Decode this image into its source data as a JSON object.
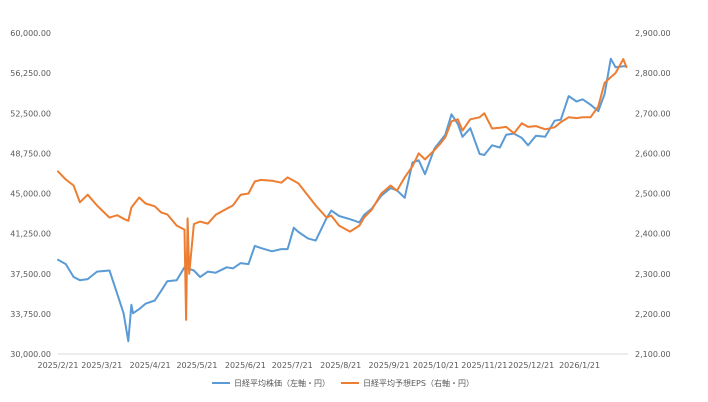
{
  "chart_data": {
    "type": "line",
    "title": "",
    "x_ticks": [
      "2025/2/21",
      "2025/3/21",
      "2025/4/21",
      "2025/5/21",
      "2025/6/21",
      "2025/7/21",
      "2025/8/21",
      "2025/9/21",
      "2025/10/21",
      "2025/11/21",
      "2025/12/21",
      "2026/1/21"
    ],
    "y_left": {
      "min": 30000,
      "max": 60000,
      "ticks": [
        "30,000.00",
        "33,750.00",
        "37,500.00",
        "41,250.00",
        "45,000.00",
        "48,750.00",
        "52,500.00",
        "56,250.00",
        "60,000.00"
      ]
    },
    "y_right": {
      "min": 2100,
      "max": 2900,
      "ticks": [
        "2,100.00",
        "2,200.00",
        "2,300.00",
        "2,400.00",
        "2,500.00",
        "2,600.00",
        "2,700.00",
        "2,800.00",
        "2,900.00"
      ]
    },
    "grid": false,
    "legend_position": "bottom",
    "series": [
      {
        "name": "日経平均株価（左軸・円）",
        "axis": "left",
        "color": "#5b9bd5",
        "points": [
          [
            "2025-02-21",
            38800
          ],
          [
            "2025-02-26",
            38400
          ],
          [
            "2025-03-03",
            37200
          ],
          [
            "2025-03-07",
            36900
          ],
          [
            "2025-03-12",
            37000
          ],
          [
            "2025-03-18",
            37700
          ],
          [
            "2025-03-26",
            37800
          ],
          [
            "2025-03-31",
            35600
          ],
          [
            "2025-04-04",
            33800
          ],
          [
            "2025-04-07",
            31200
          ],
          [
            "2025-04-09",
            34600
          ],
          [
            "2025-04-10",
            33800
          ],
          [
            "2025-04-14",
            34200
          ],
          [
            "2025-04-18",
            34700
          ],
          [
            "2025-04-24",
            35000
          ],
          [
            "2025-04-28",
            35900
          ],
          [
            "2025-05-02",
            36800
          ],
          [
            "2025-05-08",
            36900
          ],
          [
            "2025-05-13",
            38100
          ],
          [
            "2025-05-19",
            37800
          ],
          [
            "2025-05-23",
            37200
          ],
          [
            "2025-05-28",
            37700
          ],
          [
            "2025-06-02",
            37600
          ],
          [
            "2025-06-09",
            38100
          ],
          [
            "2025-06-13",
            38000
          ],
          [
            "2025-06-18",
            38500
          ],
          [
            "2025-06-23",
            38400
          ],
          [
            "2025-06-27",
            40100
          ],
          [
            "2025-07-01",
            39900
          ],
          [
            "2025-07-08",
            39600
          ],
          [
            "2025-07-14",
            39800
          ],
          [
            "2025-07-18",
            39800
          ],
          [
            "2025-07-22",
            41800
          ],
          [
            "2025-07-25",
            41400
          ],
          [
            "2025-07-31",
            40800
          ],
          [
            "2025-08-05",
            40600
          ],
          [
            "2025-08-12",
            42700
          ],
          [
            "2025-08-15",
            43400
          ],
          [
            "2025-08-20",
            42900
          ],
          [
            "2025-08-27",
            42600
          ],
          [
            "2025-09-02",
            42300
          ],
          [
            "2025-09-05",
            43000
          ],
          [
            "2025-09-10",
            43600
          ],
          [
            "2025-09-16",
            44800
          ],
          [
            "2025-09-22",
            45500
          ],
          [
            "2025-09-26",
            45300
          ],
          [
            "2025-10-01",
            44600
          ],
          [
            "2025-10-06",
            47900
          ],
          [
            "2025-10-10",
            48100
          ],
          [
            "2025-10-14",
            46800
          ],
          [
            "2025-10-20",
            49200
          ],
          [
            "2025-10-27",
            50500
          ],
          [
            "2025-10-31",
            52400
          ],
          [
            "2025-11-04",
            51500
          ],
          [
            "2025-11-07",
            50300
          ],
          [
            "2025-11-12",
            51100
          ],
          [
            "2025-11-18",
            48700
          ],
          [
            "2025-11-21",
            48600
          ],
          [
            "2025-11-26",
            49500
          ],
          [
            "2025-12-01",
            49300
          ],
          [
            "2025-12-05",
            50500
          ],
          [
            "2025-12-10",
            50600
          ],
          [
            "2025-12-15",
            50200
          ],
          [
            "2025-12-19",
            49500
          ],
          [
            "2025-12-24",
            50400
          ],
          [
            "2025-12-30",
            50300
          ],
          [
            "2026-01-05",
            51800
          ],
          [
            "2026-01-09",
            51900
          ],
          [
            "2026-01-14",
            54100
          ],
          [
            "2026-01-19",
            53600
          ],
          [
            "2026-01-23",
            53800
          ],
          [
            "2026-01-28",
            53300
          ],
          [
            "2026-02-02",
            52700
          ],
          [
            "2026-02-06",
            54300
          ],
          [
            "2026-02-10",
            57600
          ],
          [
            "2026-02-13",
            56800
          ],
          [
            "2026-02-18",
            56900
          ],
          [
            "2026-02-20",
            56900
          ]
        ]
      },
      {
        "name": "日経平均予想EPS（右軸・円）",
        "axis": "right",
        "color": "#ed7d31",
        "points": [
          [
            "2025-02-21",
            2555
          ],
          [
            "2025-02-26",
            2535
          ],
          [
            "2025-03-03",
            2520
          ],
          [
            "2025-03-07",
            2478
          ],
          [
            "2025-03-12",
            2497
          ],
          [
            "2025-03-18",
            2470
          ],
          [
            "2025-03-26",
            2440
          ],
          [
            "2025-03-31",
            2446
          ],
          [
            "2025-04-04",
            2437
          ],
          [
            "2025-04-07",
            2432
          ],
          [
            "2025-04-09",
            2465
          ],
          [
            "2025-04-14",
            2490
          ],
          [
            "2025-04-18",
            2475
          ],
          [
            "2025-04-24",
            2468
          ],
          [
            "2025-04-28",
            2453
          ],
          [
            "2025-05-02",
            2448
          ],
          [
            "2025-05-08",
            2420
          ],
          [
            "2025-05-13",
            2410
          ],
          [
            "2025-05-14",
            2185
          ],
          [
            "2025-05-15",
            2438
          ],
          [
            "2025-05-16",
            2300
          ],
          [
            "2025-05-19",
            2424
          ],
          [
            "2025-05-23",
            2430
          ],
          [
            "2025-05-28",
            2425
          ],
          [
            "2025-06-02",
            2447
          ],
          [
            "2025-06-09",
            2462
          ],
          [
            "2025-06-13",
            2470
          ],
          [
            "2025-06-18",
            2497
          ],
          [
            "2025-06-23",
            2500
          ],
          [
            "2025-06-27",
            2530
          ],
          [
            "2025-07-01",
            2534
          ],
          [
            "2025-07-08",
            2532
          ],
          [
            "2025-07-14",
            2527
          ],
          [
            "2025-07-18",
            2540
          ],
          [
            "2025-07-22",
            2532
          ],
          [
            "2025-07-25",
            2525
          ],
          [
            "2025-07-31",
            2495
          ],
          [
            "2025-08-05",
            2470
          ],
          [
            "2025-08-12",
            2440
          ],
          [
            "2025-08-15",
            2445
          ],
          [
            "2025-08-20",
            2420
          ],
          [
            "2025-08-27",
            2405
          ],
          [
            "2025-09-02",
            2420
          ],
          [
            "2025-09-05",
            2440
          ],
          [
            "2025-09-10",
            2460
          ],
          [
            "2025-09-16",
            2500
          ],
          [
            "2025-09-22",
            2520
          ],
          [
            "2025-09-26",
            2507
          ],
          [
            "2025-10-01",
            2540
          ],
          [
            "2025-10-06",
            2568
          ],
          [
            "2025-10-10",
            2600
          ],
          [
            "2025-10-14",
            2585
          ],
          [
            "2025-10-20",
            2608
          ],
          [
            "2025-10-24",
            2625
          ],
          [
            "2025-10-27",
            2640
          ],
          [
            "2025-10-31",
            2680
          ],
          [
            "2025-11-04",
            2685
          ],
          [
            "2025-11-07",
            2657
          ],
          [
            "2025-11-12",
            2685
          ],
          [
            "2025-11-18",
            2690
          ],
          [
            "2025-11-21",
            2700
          ],
          [
            "2025-11-26",
            2662
          ],
          [
            "2025-12-01",
            2664
          ],
          [
            "2025-12-05",
            2666
          ],
          [
            "2025-12-10",
            2650
          ],
          [
            "2025-12-15",
            2675
          ],
          [
            "2025-12-19",
            2666
          ],
          [
            "2025-12-24",
            2668
          ],
          [
            "2025-12-30",
            2660
          ],
          [
            "2026-01-05",
            2665
          ],
          [
            "2026-01-09",
            2678
          ],
          [
            "2026-01-14",
            2690
          ],
          [
            "2026-01-19",
            2688
          ],
          [
            "2026-01-23",
            2690
          ],
          [
            "2026-01-28",
            2690
          ],
          [
            "2026-02-02",
            2717
          ],
          [
            "2026-02-06",
            2776
          ],
          [
            "2026-02-10",
            2790
          ],
          [
            "2026-02-13",
            2800
          ],
          [
            "2026-02-18",
            2835
          ],
          [
            "2026-02-20",
            2815
          ]
        ]
      }
    ]
  }
}
